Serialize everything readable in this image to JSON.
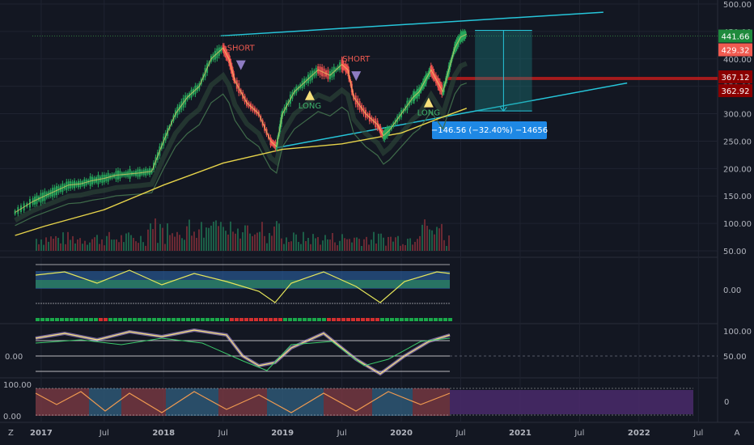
{
  "chart_data": {
    "type": "line",
    "symbol_context": "candlestick price chart with indicator panes",
    "price_axis": {
      "ticks": [
        "500.00",
        "450.00",
        "400.00",
        "350.00",
        "300.00",
        "250.00",
        "200.00",
        "150.00",
        "100.00",
        "50.00"
      ],
      "ylim": [
        40,
        505
      ]
    },
    "price_labels": [
      {
        "text": "441.66",
        "value": 441.66,
        "bg": "#1e8a3c",
        "fg": "#ffffff"
      },
      {
        "text": "429.32",
        "value": 429.32,
        "bg": "#f05a50",
        "fg": "#ffffff"
      },
      {
        "text": "367.12",
        "value": 367.12,
        "bg": "#8b0000",
        "fg": "#ffffff"
      },
      {
        "text": "362.92",
        "value": 362.92,
        "bg": "#8b0000",
        "fg": "#ffffff"
      }
    ],
    "time_axis": {
      "labels": [
        "2017",
        "Jul",
        "2018",
        "Jul",
        "2019",
        "Jul",
        "2020",
        "Jul",
        "2021",
        "Jul",
        "2022",
        "Jul"
      ],
      "bold": [
        "2017",
        "2018",
        "2019",
        "2020",
        "2021",
        "2022"
      ]
    },
    "price_series": {
      "dates": [
        2016.75,
        2016.9,
        2017.0,
        2017.1,
        2017.2,
        2017.3,
        2017.4,
        2017.5,
        2017.6,
        2017.7,
        2017.8,
        2017.9,
        2018.0,
        2018.1,
        2018.2,
        2018.3,
        2018.4,
        2018.5,
        2018.55,
        2018.6,
        2018.7,
        2018.8,
        2018.9,
        2018.95,
        2019.0,
        2019.1,
        2019.2,
        2019.3,
        2019.4,
        2019.5,
        2019.55,
        2019.6,
        2019.7,
        2019.8,
        2019.85,
        2019.9,
        2020.0,
        2020.1,
        2020.15,
        2020.2,
        2020.25,
        2020.3,
        2020.35,
        2020.4,
        2020.45,
        2020.5,
        2020.55
      ],
      "values": [
        120,
        140,
        150,
        160,
        170,
        172,
        178,
        182,
        188,
        190,
        192,
        195,
        250,
        300,
        330,
        350,
        400,
        420,
        400,
        360,
        320,
        300,
        250,
        240,
        300,
        340,
        360,
        380,
        370,
        390,
        380,
        330,
        300,
        280,
        260,
        270,
        300,
        330,
        340,
        360,
        380,
        360,
        340,
        380,
        420,
        440,
        445
      ]
    },
    "ma_series": {
      "dates": [
        2016.75,
        2017.0,
        2017.5,
        2018.0,
        2018.5,
        2019.0,
        2019.5,
        2020.0,
        2020.3,
        2020.55
      ],
      "values": [
        78,
        95,
        125,
        170,
        210,
        235,
        245,
        265,
        290,
        310
      ]
    },
    "annotations": [
      {
        "text": "SHORT",
        "date": 2018.65,
        "price": 415,
        "color": "#f05a50"
      },
      {
        "text": "SHORT",
        "date": 2019.62,
        "price": 395,
        "color": "#f05a50"
      },
      {
        "text": "LONG",
        "date": 2019.23,
        "price": 310,
        "color": "#3db36b"
      },
      {
        "text": "LONG",
        "date": 2020.23,
        "price": 297,
        "color": "#3db36b"
      }
    ],
    "measure_label": "−146.56 (−32.40%) −14656",
    "panes": [
      {
        "name": "oscillator-1",
        "tick": "0.00"
      },
      {
        "name": "oscillator-2",
        "ticks": [
          "100.00",
          "50.00",
          "0.00"
        ]
      },
      {
        "name": "oscillator-3",
        "ticks": [
          "100.00",
          "0.00",
          "0"
        ]
      }
    ],
    "colors": {
      "background": "#131722",
      "channel": "#26c6da",
      "ma_yellow": "#e6d34a",
      "bull": "#26a65b",
      "bear": "#ef5350",
      "price_line": "#4caf50"
    }
  },
  "footer": {
    "left_btn": "Z",
    "right_btn": "A"
  }
}
